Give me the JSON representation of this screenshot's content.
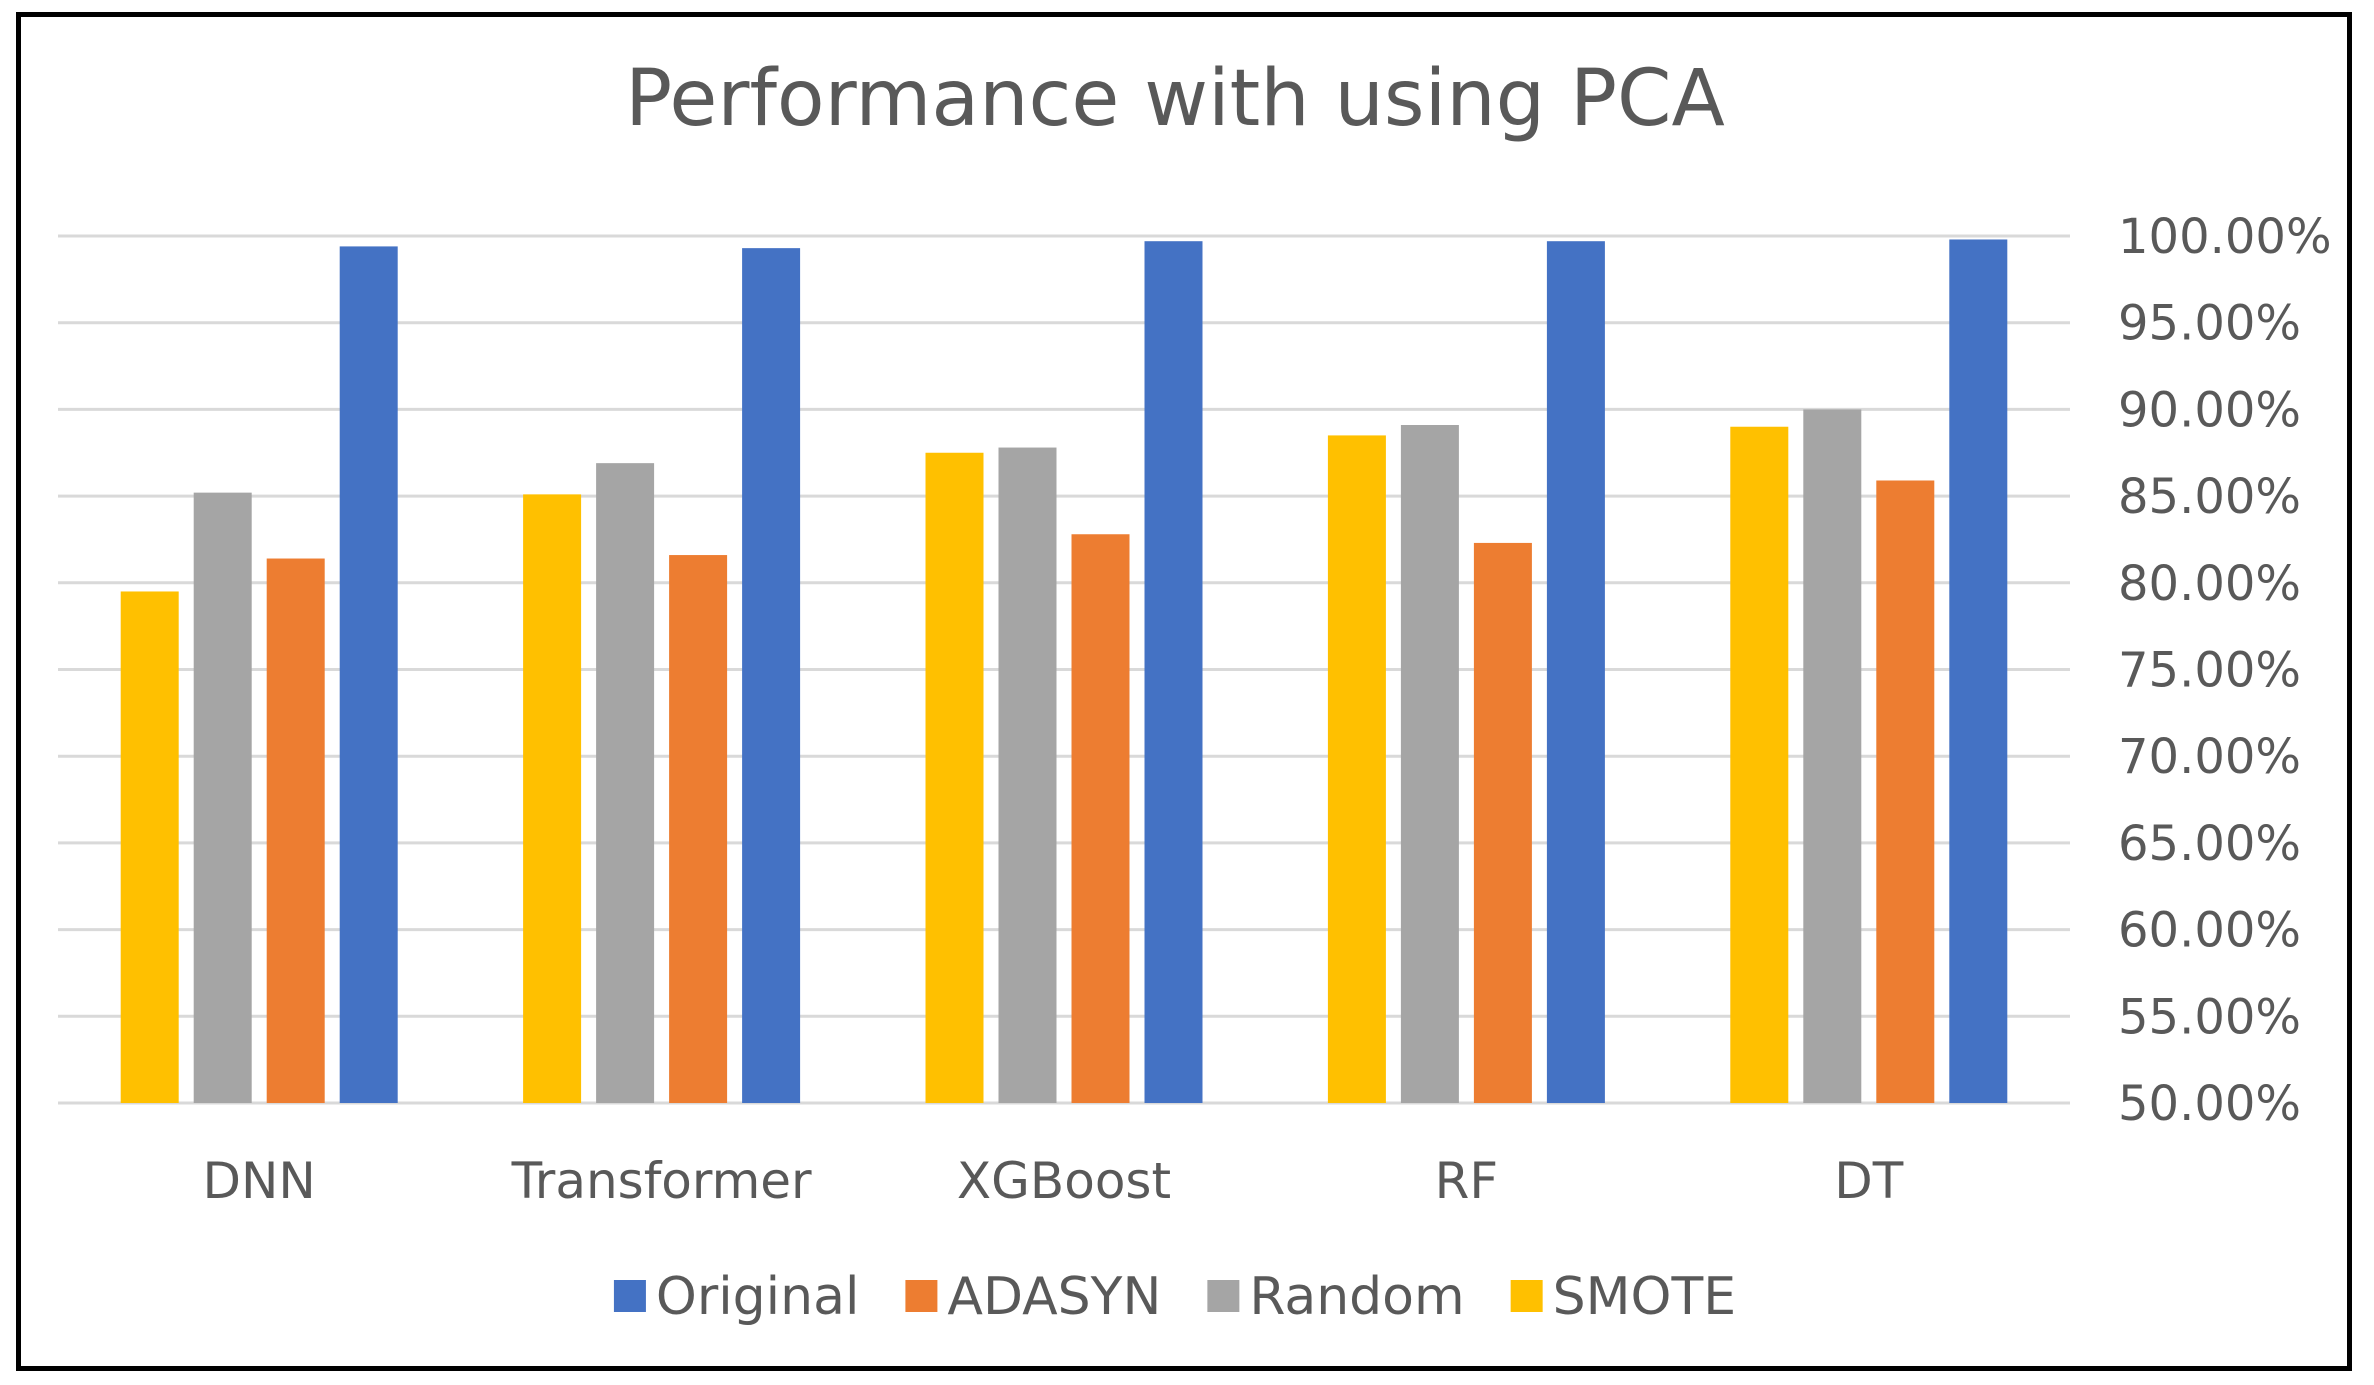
{
  "chart_data": {
    "type": "bar",
    "title": "Performance with using PCA",
    "xlabel": "",
    "ylabel": "",
    "ylim": [
      50,
      100
    ],
    "y_ticks": [
      "50.00%",
      "55.00%",
      "60.00%",
      "65.00%",
      "70.00%",
      "75.00%",
      "80.00%",
      "85.00%",
      "90.00%",
      "95.00%",
      "100.00%"
    ],
    "y_axis_side": "right",
    "grid": true,
    "legend_position": "bottom",
    "categories": [
      "DNN",
      "Transformer",
      "XGBoost",
      "RF",
      "DT"
    ],
    "series": [
      {
        "name": "SMOTE",
        "color": "#FFC000",
        "values": [
          79.5,
          85.1,
          87.5,
          88.5,
          89.0
        ]
      },
      {
        "name": "Random",
        "color": "#A5A5A5",
        "values": [
          85.2,
          86.9,
          87.8,
          89.1,
          90.0
        ]
      },
      {
        "name": "ADASYN",
        "color": "#ED7D31",
        "values": [
          81.4,
          81.6,
          82.8,
          82.3,
          85.9
        ]
      },
      {
        "name": "Original",
        "color": "#4472C4",
        "values": [
          99.4,
          99.3,
          99.7,
          99.7,
          99.8
        ]
      }
    ],
    "legend_order": [
      "Original",
      "ADASYN",
      "Random",
      "SMOTE"
    ]
  },
  "colors": {
    "gridline": "#D9D9D9",
    "text": "#595959",
    "border": "#000000"
  }
}
